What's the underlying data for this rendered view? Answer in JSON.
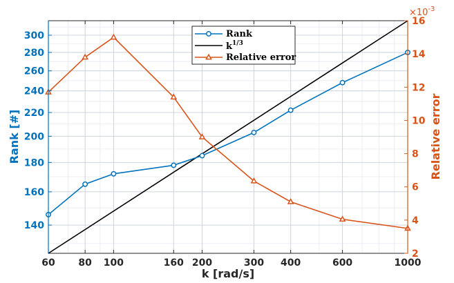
{
  "chart_data": {
    "type": "line",
    "xlabel": "k [rad/s]",
    "ylabel_left": "Rank [#]",
    "ylabel_right": "Relative error",
    "x_scale": "log",
    "y_left_scale": "log",
    "xlim": [
      60,
      1000
    ],
    "ylim_left": [
      125,
      318
    ],
    "ylim_right": [
      2,
      16
    ],
    "right_axis_exponent": "×10",
    "right_axis_exponent_power": "-3",
    "grid": true,
    "legend_position": "top-center",
    "x_ticks": [
      60,
      80,
      100,
      160,
      200,
      300,
      400,
      600,
      1000
    ],
    "x_tick_labels": [
      "60",
      "80",
      "100",
      "160",
      "200",
      "300",
      "400",
      "600",
      "1000"
    ],
    "y_left_ticks": [
      140,
      160,
      180,
      200,
      220,
      240,
      260,
      280,
      300
    ],
    "y_left_tick_labels": [
      "140",
      "160",
      "180",
      "200",
      "220",
      "240",
      "260",
      "280",
      "300"
    ],
    "y_right_ticks": [
      2,
      4,
      6,
      8,
      10,
      12,
      14,
      16
    ],
    "y_right_tick_labels": [
      "2",
      "4",
      "6",
      "8",
      "10",
      "12",
      "14",
      "16"
    ],
    "x": [
      60,
      80,
      100,
      160,
      200,
      300,
      400,
      600,
      1000
    ],
    "series": [
      {
        "name": "Rank",
        "axis": "left",
        "color": "#0072BD",
        "marker": "circle",
        "values": [
          146,
          165,
          172,
          178,
          185,
          203,
          222,
          248,
          280
        ]
      },
      {
        "name": "k",
        "name_superscript": "1/3",
        "axis": "left",
        "color": "#000000",
        "marker": "none",
        "line_endpoints_x": [
          60,
          1000
        ],
        "line_endpoints_y": [
          125,
          318
        ]
      },
      {
        "name": "Relative error",
        "axis": "right",
        "color": "#D95319",
        "marker": "triangle",
        "values": [
          11.7,
          13.8,
          15.0,
          11.4,
          9.0,
          6.35,
          5.1,
          4.05,
          3.5
        ]
      }
    ]
  }
}
